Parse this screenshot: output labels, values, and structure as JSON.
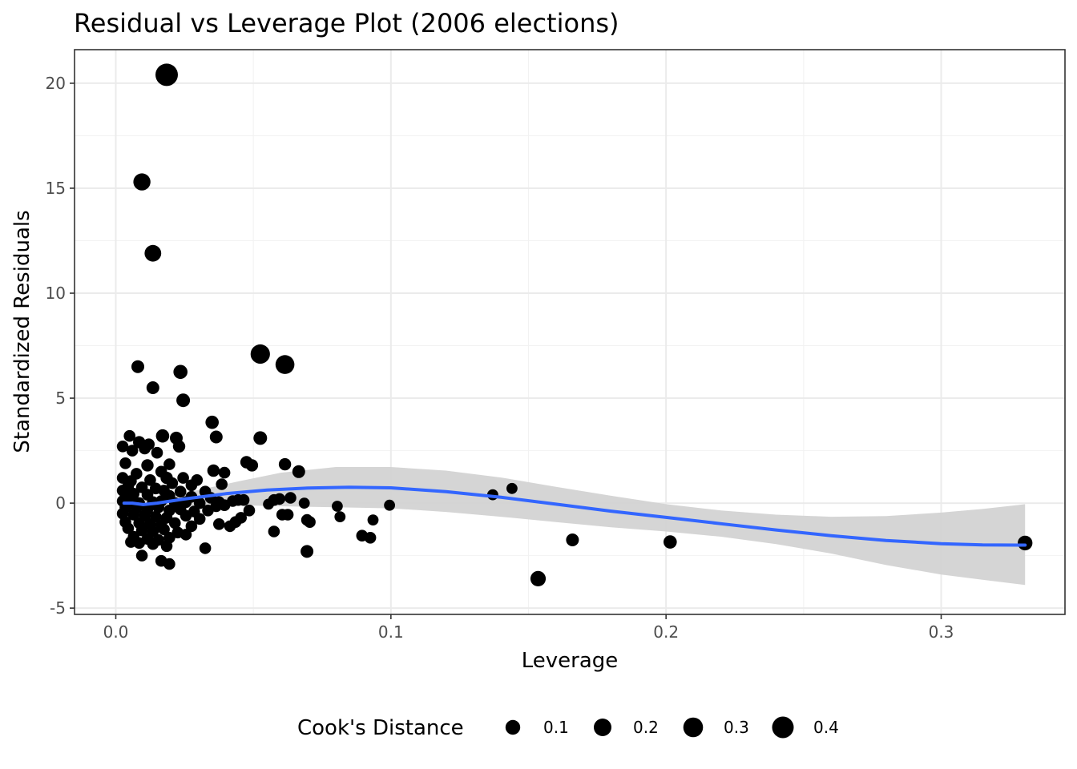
{
  "chart_data": {
    "type": "scatter",
    "title": "Residual vs Leverage Plot (2006 elections)",
    "xlabel": "Leverage",
    "ylabel": "Standardized Residuals",
    "xlim": [
      -0.015,
      0.345
    ],
    "ylim": [
      -5.3,
      21.6
    ],
    "x_ticks": [
      0.0,
      0.1,
      0.2,
      0.3
    ],
    "x_tick_labels": [
      "0.0",
      "0.1",
      "0.2",
      "0.3"
    ],
    "y_ticks": [
      -5,
      0,
      5,
      10,
      15,
      20
    ],
    "y_tick_labels": [
      "-5",
      "0",
      "5",
      "10",
      "15",
      "20"
    ],
    "grid": true,
    "colors": {
      "points": "#000000",
      "smooth": "#3366ff",
      "band": "#d3d3d3",
      "grid": "#ebebeb"
    },
    "legend": {
      "title": "Cook's Distance",
      "position": "bottom",
      "entries": [
        {
          "label": "0.1",
          "value": 0.1
        },
        {
          "label": "0.2",
          "value": 0.2
        },
        {
          "label": "0.3",
          "value": 0.3
        },
        {
          "label": "0.4",
          "value": 0.4
        }
      ]
    },
    "points": [
      [
        0.0185,
        20.4,
        0.45
      ],
      [
        0.0095,
        15.3,
        0.18
      ],
      [
        0.0135,
        11.9,
        0.16
      ],
      [
        0.0525,
        7.1,
        0.28
      ],
      [
        0.0615,
        6.6,
        0.26
      ],
      [
        0.008,
        6.5,
        0.05
      ],
      [
        0.0235,
        6.25,
        0.08
      ],
      [
        0.0135,
        5.5,
        0.05
      ],
      [
        0.0245,
        4.9,
        0.07
      ],
      [
        0.035,
        3.85,
        0.06
      ],
      [
        0.0365,
        3.15,
        0.05
      ],
      [
        0.0525,
        3.1,
        0.07
      ],
      [
        0.017,
        3.2,
        0.06
      ],
      [
        0.022,
        3.1,
        0.05
      ],
      [
        0.005,
        3.2,
        0.03
      ],
      [
        0.0085,
        2.9,
        0.04
      ],
      [
        0.012,
        2.8,
        0.03
      ],
      [
        0.023,
        2.7,
        0.04
      ],
      [
        0.0025,
        2.7,
        0.03
      ],
      [
        0.006,
        2.5,
        0.03
      ],
      [
        0.0105,
        2.6,
        0.03
      ],
      [
        0.015,
        2.4,
        0.03
      ],
      [
        0.0475,
        1.95,
        0.04
      ],
      [
        0.0615,
        1.85,
        0.04
      ],
      [
        0.0195,
        1.85,
        0.03
      ],
      [
        0.0115,
        1.8,
        0.04
      ],
      [
        0.0035,
        1.9,
        0.03
      ],
      [
        0.0495,
        1.8,
        0.04
      ],
      [
        0.0355,
        1.55,
        0.04
      ],
      [
        0.0395,
        1.45,
        0.03
      ],
      [
        0.0665,
        1.5,
        0.05
      ],
      [
        0.0165,
        1.5,
        0.03
      ],
      [
        0.0075,
        1.4,
        0.03
      ],
      [
        0.0025,
        1.2,
        0.03
      ],
      [
        0.0185,
        1.2,
        0.04
      ],
      [
        0.0245,
        1.2,
        0.03
      ],
      [
        0.0295,
        1.1,
        0.03
      ],
      [
        0.0055,
        1.05,
        0.03
      ],
      [
        0.0125,
        1.1,
        0.03
      ],
      [
        0.0205,
        0.95,
        0.03
      ],
      [
        0.0385,
        0.9,
        0.03
      ],
      [
        0.0275,
        0.85,
        0.03
      ],
      [
        0.0045,
        0.8,
        0.03
      ],
      [
        0.0095,
        0.75,
        0.03
      ],
      [
        0.0145,
        0.7,
        0.03
      ],
      [
        0.0025,
        0.6,
        0.03
      ],
      [
        0.0175,
        0.6,
        0.03
      ],
      [
        0.0235,
        0.55,
        0.03
      ],
      [
        0.0325,
        0.55,
        0.03
      ],
      [
        0.144,
        0.7,
        0.02
      ],
      [
        0.137,
        0.4,
        0.02
      ],
      [
        0.0065,
        0.45,
        0.03
      ],
      [
        0.0115,
        0.4,
        0.03
      ],
      [
        0.0035,
        0.3,
        0.03
      ],
      [
        0.0195,
        0.35,
        0.03
      ],
      [
        0.0275,
        0.3,
        0.03
      ],
      [
        0.0345,
        0.25,
        0.03
      ],
      [
        0.0635,
        0.25,
        0.03
      ],
      [
        0.0595,
        0.2,
        0.03
      ],
      [
        0.0575,
        0.15,
        0.03
      ],
      [
        0.0425,
        0.1,
        0.03
      ],
      [
        0.0445,
        0.15,
        0.03
      ],
      [
        0.0465,
        0.15,
        0.03
      ],
      [
        0.0375,
        0.05,
        0.03
      ],
      [
        0.0025,
        0.1,
        0.03
      ],
      [
        0.0055,
        0.05,
        0.03
      ],
      [
        0.0085,
        0.0,
        0.03
      ],
      [
        0.0135,
        0.05,
        0.03
      ],
      [
        0.0165,
        0.1,
        0.03
      ],
      [
        0.0215,
        0.0,
        0.03
      ],
      [
        0.0255,
        0.05,
        0.03
      ],
      [
        0.0305,
        0.0,
        0.03
      ],
      [
        0.0685,
        0.0,
        0.02
      ],
      [
        0.0555,
        -0.05,
        0.02
      ],
      [
        0.0395,
        -0.1,
        0.03
      ],
      [
        0.0365,
        -0.15,
        0.03
      ],
      [
        0.0805,
        -0.15,
        0.02
      ],
      [
        0.0995,
        -0.1,
        0.02
      ],
      [
        0.0035,
        -0.2,
        0.03
      ],
      [
        0.0075,
        -0.25,
        0.03
      ],
      [
        0.0115,
        -0.3,
        0.03
      ],
      [
        0.0155,
        -0.2,
        0.03
      ],
      [
        0.0195,
        -0.35,
        0.03
      ],
      [
        0.0235,
        -0.3,
        0.03
      ],
      [
        0.0285,
        -0.4,
        0.03
      ],
      [
        0.0335,
        -0.35,
        0.03
      ],
      [
        0.0485,
        -0.35,
        0.03
      ],
      [
        0.0605,
        -0.55,
        0.03
      ],
      [
        0.0625,
        -0.55,
        0.03
      ],
      [
        0.0815,
        -0.65,
        0.02
      ],
      [
        0.0025,
        -0.5,
        0.03
      ],
      [
        0.0065,
        -0.55,
        0.03
      ],
      [
        0.0105,
        -0.6,
        0.03
      ],
      [
        0.0145,
        -0.65,
        0.03
      ],
      [
        0.0185,
        -0.7,
        0.03
      ],
      [
        0.0255,
        -0.6,
        0.03
      ],
      [
        0.0305,
        -0.75,
        0.03
      ],
      [
        0.0455,
        -0.7,
        0.03
      ],
      [
        0.0435,
        -0.9,
        0.03
      ],
      [
        0.0695,
        -0.8,
        0.03
      ],
      [
        0.0705,
        -0.9,
        0.03
      ],
      [
        0.0935,
        -0.8,
        0.02
      ],
      [
        0.0035,
        -0.9,
        0.03
      ],
      [
        0.0085,
        -0.95,
        0.03
      ],
      [
        0.0125,
        -1.0,
        0.03
      ],
      [
        0.0165,
        -1.05,
        0.03
      ],
      [
        0.0215,
        -0.95,
        0.03
      ],
      [
        0.0275,
        -1.1,
        0.03
      ],
      [
        0.0375,
        -1.0,
        0.03
      ],
      [
        0.0415,
        -1.1,
        0.03
      ],
      [
        0.0575,
        -1.35,
        0.03
      ],
      [
        0.0045,
        -1.2,
        0.03
      ],
      [
        0.0095,
        -1.3,
        0.03
      ],
      [
        0.0135,
        -1.35,
        0.03
      ],
      [
        0.0175,
        -1.25,
        0.03
      ],
      [
        0.0225,
        -1.4,
        0.03
      ],
      [
        0.0255,
        -1.5,
        0.03
      ],
      [
        0.0895,
        -1.55,
        0.03
      ],
      [
        0.0925,
        -1.65,
        0.03
      ],
      [
        0.0065,
        -1.6,
        0.03
      ],
      [
        0.0115,
        -1.7,
        0.03
      ],
      [
        0.0155,
        -1.75,
        0.03
      ],
      [
        0.0195,
        -1.65,
        0.03
      ],
      [
        0.0055,
        -1.85,
        0.03
      ],
      [
        0.0085,
        -1.9,
        0.03
      ],
      [
        0.0135,
        -1.95,
        0.03
      ],
      [
        0.0185,
        -2.05,
        0.03
      ],
      [
        0.0325,
        -2.15,
        0.03
      ],
      [
        0.0695,
        -2.3,
        0.05
      ],
      [
        0.0095,
        -2.5,
        0.03
      ],
      [
        0.0165,
        -2.75,
        0.03
      ],
      [
        0.0195,
        -2.9,
        0.03
      ],
      [
        0.166,
        -1.75,
        0.05
      ],
      [
        0.2015,
        -1.85,
        0.06
      ],
      [
        0.1535,
        -3.6,
        0.12
      ],
      [
        0.3305,
        -1.9,
        0.1
      ]
    ],
    "smooth_line": [
      [
        0.003,
        0.0
      ],
      [
        0.006,
        0.0
      ],
      [
        0.01,
        -0.07
      ],
      [
        0.015,
        0.0
      ],
      [
        0.025,
        0.2
      ],
      [
        0.04,
        0.45
      ],
      [
        0.055,
        0.62
      ],
      [
        0.07,
        0.72
      ],
      [
        0.085,
        0.76
      ],
      [
        0.1,
        0.73
      ],
      [
        0.12,
        0.55
      ],
      [
        0.14,
        0.28
      ],
      [
        0.16,
        -0.05
      ],
      [
        0.18,
        -0.38
      ],
      [
        0.2,
        -0.68
      ],
      [
        0.22,
        -0.98
      ],
      [
        0.24,
        -1.28
      ],
      [
        0.26,
        -1.55
      ],
      [
        0.28,
        -1.78
      ],
      [
        0.3,
        -1.93
      ],
      [
        0.315,
        -1.99
      ],
      [
        0.3305,
        -2.0
      ]
    ],
    "confidence_band": {
      "x": [
        0.003,
        0.01,
        0.02,
        0.03,
        0.045,
        0.06,
        0.08,
        0.1,
        0.12,
        0.14,
        0.16,
        0.18,
        0.2,
        0.22,
        0.24,
        0.26,
        0.28,
        0.3,
        0.315,
        0.3305
      ],
      "upper": [
        0.35,
        0.15,
        0.35,
        0.62,
        1.05,
        1.45,
        1.72,
        1.72,
        1.55,
        1.22,
        0.78,
        0.35,
        -0.05,
        -0.35,
        -0.55,
        -0.65,
        -0.62,
        -0.45,
        -0.28,
        -0.05
      ],
      "lower": [
        -0.35,
        -0.28,
        -0.3,
        -0.2,
        -0.1,
        -0.15,
        -0.2,
        -0.25,
        -0.42,
        -0.65,
        -0.9,
        -1.15,
        -1.35,
        -1.6,
        -1.95,
        -2.4,
        -2.95,
        -3.4,
        -3.65,
        -3.9
      ]
    }
  }
}
